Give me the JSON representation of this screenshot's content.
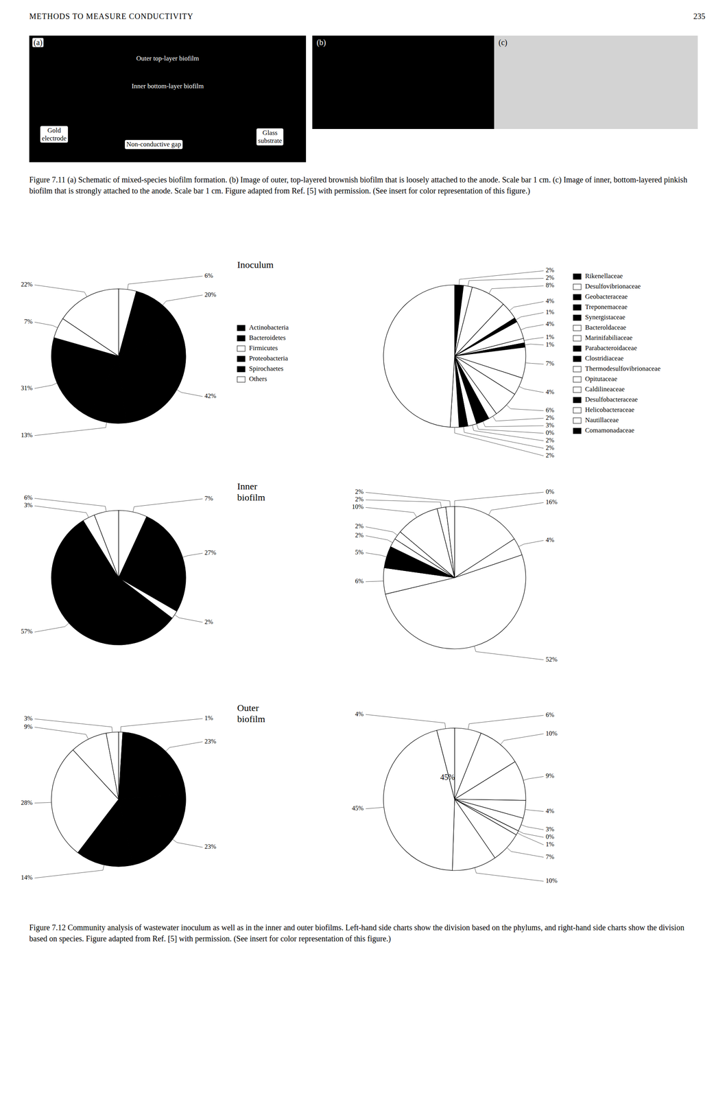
{
  "page": {
    "header_left": "METHODS TO MEASURE CONDUCTIVITY",
    "header_right": "235",
    "panels": [
      {
        "label": "(a)",
        "texts": [
          "Outer top-layer biofilm",
          "Inner bottom-layer biofilm",
          "Gold\nelectrode",
          "Non-conductive gap",
          "Glass\nsubstrate"
        ]
      },
      {
        "label": "(b)",
        "texts": []
      },
      {
        "label": "(c)",
        "texts": []
      }
    ],
    "captions": [
      "Figure 7.11   (a) Schematic of mixed-species biofilm formation. (b) Image of outer, top-layered brownish biofilm that is loosely attached to the anode. Scale bar 1 cm. (c) Image of inner, bottom-layered pinkish biofilm that is strongly attached to the anode. Scale bar 1 cm. Figure adapted from Ref. [5] with permission. (See insert for color representation of this figure.)",
      "Figure 7.12   Community analysis of wastewater inoculum as well as in the inner and outer biofilms. Left-hand side charts show the division based on the phylums, and right-hand side charts show the division based on species. Figure adapted from Ref. [5] with permission. (See insert for color representation of this figure.)"
    ]
  },
  "chart_data": [
    {
      "type": "pie",
      "title": "Inoculum",
      "values": [
        6,
        20,
        42,
        13,
        31,
        7,
        22
      ],
      "value_labels": [
        "6%",
        "20%",
        "42%",
        "13%",
        "31%",
        "7%",
        "22%"
      ],
      "colors": [
        "white",
        "black",
        "black",
        "black",
        "black",
        "white",
        "white"
      ],
      "data_labels": true,
      "legend": "right",
      "legend_entries": [
        {
          "name": "Actinobacteria",
          "color": "black"
        },
        {
          "name": "Bacteroidetes",
          "color": "black"
        },
        {
          "name": "Firmicutes",
          "color": "white"
        },
        {
          "name": "Proteobacteria",
          "color": "black"
        },
        {
          "name": "Spirochaetes",
          "color": "black"
        },
        {
          "name": "Others",
          "color": "white"
        }
      ]
    },
    {
      "type": "pie",
      "values": [
        2,
        2,
        8,
        4,
        1,
        4,
        1,
        1,
        7,
        4,
        6,
        2,
        3,
        0,
        2,
        2,
        2,
        49
      ],
      "value_labels": [
        "2%",
        "2%",
        "8%",
        "4%",
        "1%",
        "4%",
        "1%",
        "1%",
        "7%",
        "4%",
        "6%",
        "2%",
        "3%",
        "0%",
        "2%",
        "2%",
        "2%",
        null
      ],
      "colors": [
        "black",
        "white",
        "white",
        "white",
        "black",
        "white",
        "white",
        "black",
        "white",
        "white",
        "white",
        "white",
        "black",
        "white",
        "white",
        "black",
        "white",
        "white"
      ],
      "data_labels": true,
      "legend": "right",
      "legend_entries": [
        {
          "name": "Rikenellaceae",
          "color": "black"
        },
        {
          "name": "Desulfovibrionaceae",
          "color": "white"
        },
        {
          "name": "Geobacteraceae",
          "color": "black"
        },
        {
          "name": "Treponemaceae",
          "color": "black"
        },
        {
          "name": "Synergistaceae",
          "color": "black"
        },
        {
          "name": "Bacteroldaceae",
          "color": "white"
        },
        {
          "name": "Marinifabiliaceae",
          "color": "white"
        },
        {
          "name": "Parabacteroidaceae",
          "color": "black"
        },
        {
          "name": "Clostridiaceae",
          "color": "black"
        },
        {
          "name": "Thermodesulfovibrionaceae",
          "color": "white"
        },
        {
          "name": "Opitutaceae",
          "color": "white"
        },
        {
          "name": "Caldilineaceae",
          "color": "white"
        },
        {
          "name": "Desulfobacteraceae",
          "color": "black"
        },
        {
          "name": "Helicobacteraceae",
          "color": "white"
        },
        {
          "name": "Nautillaceae",
          "color": "white"
        },
        {
          "name": "Comamonadaceae",
          "color": "black"
        }
      ]
    },
    {
      "type": "pie",
      "title": "Inner\nbiofilm",
      "values": [
        7,
        27,
        2,
        57,
        3,
        6
      ],
      "value_labels": [
        "7%",
        "27%",
        "2%",
        "57%",
        "3%",
        "6%"
      ],
      "colors": [
        "white",
        "black",
        "white",
        "black",
        "white",
        "white"
      ],
      "data_labels": true
    },
    {
      "type": "pie",
      "values": [
        0,
        16,
        4,
        52,
        6,
        5,
        2,
        2,
        10,
        2,
        2
      ],
      "value_labels": [
        "0%",
        "16%",
        "4%",
        "52%",
        "6%",
        "5%",
        "2%",
        "2%",
        "10%",
        "2%",
        "2%"
      ],
      "colors": [
        "white",
        "white",
        "white",
        "white",
        "white",
        "black",
        "white",
        "white",
        "white",
        "white",
        "white"
      ],
      "data_labels": true
    },
    {
      "type": "pie",
      "title": "Outer\nbiofilm",
      "values": [
        1,
        23,
        23,
        14,
        28,
        9,
        3
      ],
      "value_labels": [
        "1%",
        "23%",
        "23%",
        "14%",
        "28%",
        "9%",
        "3%"
      ],
      "colors": [
        "white",
        "black",
        "black",
        "black",
        "white",
        "white",
        "white"
      ],
      "data_labels": true
    },
    {
      "type": "pie",
      "values": [
        6,
        10,
        9,
        4,
        3,
        0,
        1,
        7,
        10,
        45,
        4
      ],
      "value_labels": [
        "6%",
        "10%",
        "9%",
        "4%",
        "3%",
        "0%",
        "1%",
        "7%",
        "10%",
        "45%",
        "4%"
      ],
      "colors": [
        "white",
        "white",
        "white",
        "white",
        "white",
        "white",
        "white",
        "white",
        "white",
        "white",
        "white"
      ],
      "data_labels": true,
      "annotations": [
        {
          "text": "45%"
        }
      ]
    }
  ]
}
